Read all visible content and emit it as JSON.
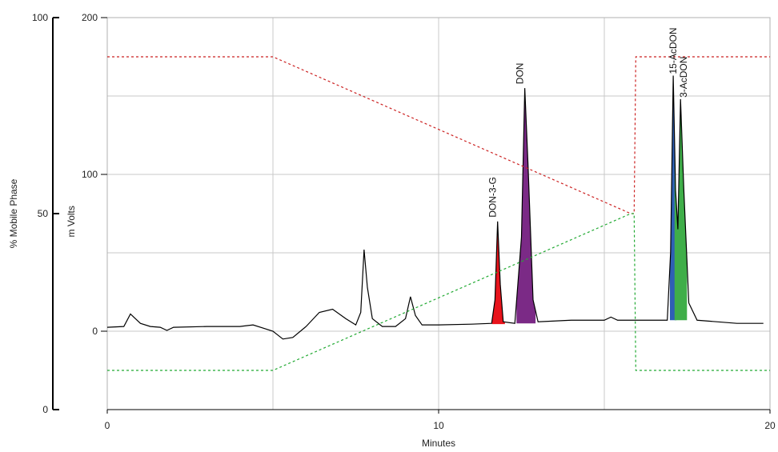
{
  "chart_data": {
    "type": "line",
    "xlabel": "Minutes",
    "y_left_outer_label": "% Mobile Phase",
    "y_left_inner_label": "m Volts",
    "xlim": [
      0,
      20
    ],
    "ylim_mvolts": [
      -50,
      200
    ],
    "ylim_percent": [
      0,
      100
    ],
    "x_ticks": [
      "0",
      "10",
      "20"
    ],
    "y_ticks_mvolts": [
      "0",
      "100",
      "200"
    ],
    "y_ticks_percent": [
      "0",
      "50",
      "100"
    ],
    "grid": true,
    "series": [
      {
        "kind": "chromatogram",
        "unit": "mV",
        "color": "#000000",
        "points": [
          [
            0,
            2.5
          ],
          [
            0.5,
            3
          ],
          [
            0.7,
            11
          ],
          [
            1.0,
            5
          ],
          [
            1.3,
            3
          ],
          [
            1.6,
            2.5
          ],
          [
            1.8,
            0.5
          ],
          [
            2.0,
            2.5
          ],
          [
            3.0,
            3
          ],
          [
            4.0,
            3
          ],
          [
            4.4,
            4
          ],
          [
            4.7,
            2
          ],
          [
            5.0,
            0
          ],
          [
            5.3,
            -5
          ],
          [
            5.6,
            -4
          ],
          [
            6.0,
            3
          ],
          [
            6.4,
            12
          ],
          [
            6.8,
            14
          ],
          [
            7.2,
            8
          ],
          [
            7.5,
            4
          ],
          [
            7.65,
            12
          ],
          [
            7.75,
            52
          ],
          [
            7.85,
            28
          ],
          [
            8.0,
            8
          ],
          [
            8.3,
            3
          ],
          [
            8.7,
            3
          ],
          [
            9.0,
            8
          ],
          [
            9.15,
            22
          ],
          [
            9.3,
            10
          ],
          [
            9.5,
            4
          ],
          [
            10,
            4
          ],
          [
            11,
            4.5
          ],
          [
            11.6,
            5
          ],
          [
            11.7,
            20
          ],
          [
            11.78,
            70
          ],
          [
            11.86,
            30
          ],
          [
            11.95,
            6
          ],
          [
            12.3,
            5
          ],
          [
            12.5,
            60
          ],
          [
            12.6,
            155
          ],
          [
            12.7,
            105
          ],
          [
            12.85,
            20
          ],
          [
            13.0,
            6
          ],
          [
            14,
            7
          ],
          [
            15,
            7
          ],
          [
            15.2,
            9
          ],
          [
            15.4,
            7
          ],
          [
            16,
            7
          ],
          [
            16.9,
            7
          ],
          [
            17.0,
            50
          ],
          [
            17.08,
            163
          ],
          [
            17.15,
            90
          ],
          [
            17.22,
            65
          ],
          [
            17.3,
            148
          ],
          [
            17.4,
            90
          ],
          [
            17.55,
            18
          ],
          [
            17.8,
            7
          ],
          [
            19,
            5
          ],
          [
            19.8,
            5
          ]
        ]
      },
      {
        "kind": "mobile-phase-a",
        "unit": "%",
        "color": "#cc2222",
        "style": "dashed",
        "points": [
          [
            0,
            90
          ],
          [
            5,
            90
          ],
          [
            15.8,
            50
          ],
          [
            15.9,
            50
          ],
          [
            15.95,
            90
          ],
          [
            20,
            90
          ]
        ]
      },
      {
        "kind": "mobile-phase-b",
        "unit": "%",
        "color": "#22aa33",
        "style": "dashed",
        "points": [
          [
            0,
            10
          ],
          [
            5,
            10
          ],
          [
            15.8,
            50
          ],
          [
            15.9,
            50
          ],
          [
            15.95,
            10
          ],
          [
            20,
            10
          ]
        ]
      }
    ],
    "peaks": [
      {
        "label": "DON-3-G",
        "x": 11.78,
        "y": 70,
        "color": "#e8141c"
      },
      {
        "label": "DON",
        "x": 12.6,
        "y": 155,
        "color": "#7b2a86"
      },
      {
        "label": "15-AcDON",
        "x": 17.08,
        "y": 163,
        "color": "#2f5fb5"
      },
      {
        "label": "3-AcDON",
        "x": 17.3,
        "y": 148,
        "color": "#3fae49"
      }
    ]
  }
}
